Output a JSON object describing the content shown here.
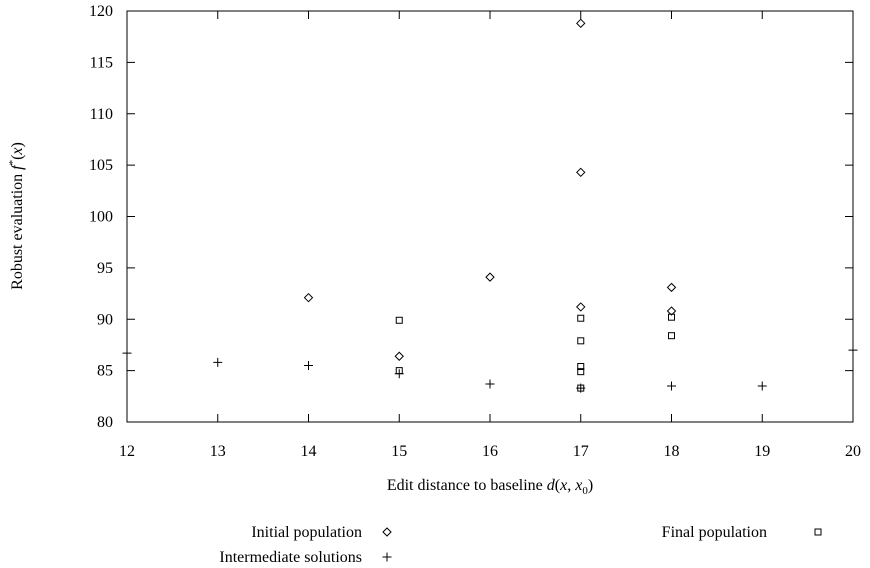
{
  "chart_data": {
    "type": "scatter",
    "xlabel": "Edit distance to baseline d(x, x₀)",
    "ylabel": "Robust evaluation f*(x)",
    "xlim": [
      12,
      20
    ],
    "ylim": [
      80,
      120
    ],
    "x_ticks": [
      12,
      13,
      14,
      15,
      16,
      17,
      18,
      19,
      20
    ],
    "y_ticks": [
      80,
      85,
      90,
      95,
      100,
      105,
      110,
      115,
      120
    ],
    "grid": false,
    "legend_placement": "bottom",
    "series": [
      {
        "name": "Initial population",
        "marker": "diamond",
        "points": [
          {
            "x": 14,
            "y": 92.1
          },
          {
            "x": 15,
            "y": 86.4
          },
          {
            "x": 16,
            "y": 94.1
          },
          {
            "x": 17,
            "y": 118.8
          },
          {
            "x": 17,
            "y": 104.3
          },
          {
            "x": 17,
            "y": 91.2
          },
          {
            "x": 18,
            "y": 93.1
          },
          {
            "x": 18,
            "y": 90.8
          }
        ]
      },
      {
        "name": "Final population",
        "marker": "square",
        "points": [
          {
            "x": 15,
            "y": 89.9
          },
          {
            "x": 15,
            "y": 85.0
          },
          {
            "x": 17,
            "y": 90.1
          },
          {
            "x": 17,
            "y": 87.9
          },
          {
            "x": 17,
            "y": 85.4
          },
          {
            "x": 17,
            "y": 84.9
          },
          {
            "x": 17,
            "y": 83.3
          },
          {
            "x": 18,
            "y": 90.2
          },
          {
            "x": 18,
            "y": 88.4
          }
        ]
      },
      {
        "name": "Intermediate solutions",
        "marker": "plus",
        "points": [
          {
            "x": 12,
            "y": 86.7
          },
          {
            "x": 13,
            "y": 85.8
          },
          {
            "x": 14,
            "y": 85.5
          },
          {
            "x": 15,
            "y": 84.7
          },
          {
            "x": 16,
            "y": 83.7
          },
          {
            "x": 17,
            "y": 83.3
          },
          {
            "x": 18,
            "y": 83.5
          },
          {
            "x": 19,
            "y": 83.5
          },
          {
            "x": 20,
            "y": 87.0
          }
        ]
      }
    ]
  }
}
